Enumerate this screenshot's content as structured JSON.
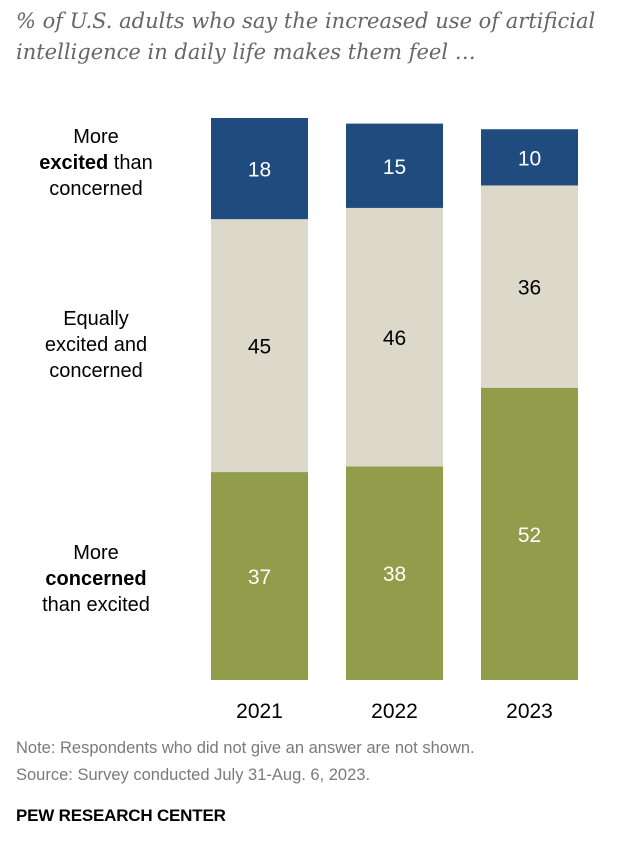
{
  "subtitle": "% of U.S. adults who say the increased use of artificial intelligence in daily life makes them feel …",
  "row_labels": {
    "excited": {
      "line1": "More",
      "bold": "excited",
      "after_bold": " than",
      "line3": "concerned"
    },
    "equal": {
      "line1": "Equally",
      "line2": "excited and",
      "line3": "concerned"
    },
    "concerned": {
      "line1": "More",
      "bold": "concerned",
      "line3": "than excited"
    }
  },
  "chart_data": {
    "type": "bar",
    "stacked": true,
    "categories": [
      "2021",
      "2022",
      "2023"
    ],
    "series": [
      {
        "name": "More excited than concerned",
        "values": [
          18,
          15,
          10
        ],
        "color": "#1f4b7f",
        "label_color": "#ffffff"
      },
      {
        "name": "Equally excited and concerned",
        "values": [
          45,
          46,
          36
        ],
        "color": "#dcd9cb",
        "label_color": "#000000"
      },
      {
        "name": "More concerned than excited",
        "values": [
          37,
          38,
          52
        ],
        "color": "#929d4b",
        "label_color": "#ffffff"
      }
    ],
    "ylim": [
      0,
      100
    ]
  },
  "note": "Note: Respondents who did not give an answer are not shown.",
  "source": "Source: Survey conducted July 31-Aug. 6, 2023.",
  "brand": "PEW RESEARCH CENTER"
}
